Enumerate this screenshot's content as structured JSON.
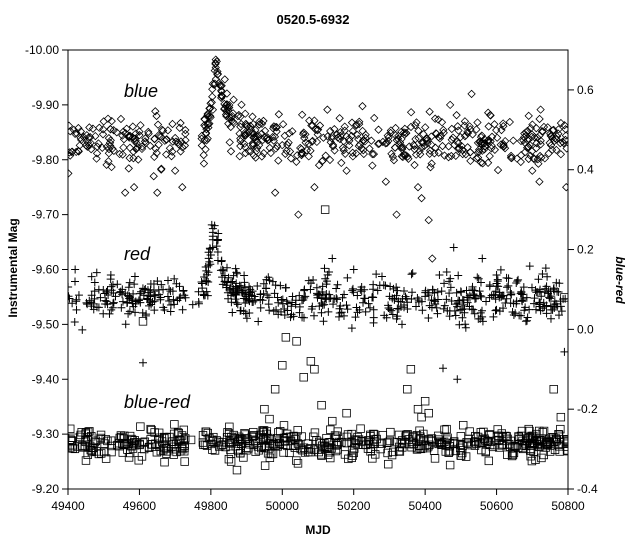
{
  "chart_data": {
    "type": "scatter",
    "title": "0520.5-6932",
    "xlabel": "MJD",
    "ylabel": "Instrumental Mag",
    "y2label": "blue-red",
    "xlim": [
      49400,
      50800
    ],
    "ylim": [
      -9.2,
      -10.0
    ],
    "y2lim": [
      -0.4,
      0.7
    ],
    "x_ticks": [
      "49400",
      "49600",
      "49800",
      "50000",
      "50200",
      "50400",
      "50600",
      "50800"
    ],
    "y_ticks": [
      "-9.20",
      "-9.30",
      "-9.40",
      "-9.50",
      "-9.60",
      "-9.70",
      "-9.80",
      "-9.90",
      "-10.00"
    ],
    "y2_ticks": [
      "-0.4",
      "-0.2",
      "0.0",
      "0.2",
      "0.4",
      "0.6"
    ],
    "grid": false,
    "annotations": [
      "blue",
      "red",
      "blue-red"
    ],
    "series": [
      {
        "name": "blue",
        "marker": "diamond",
        "y_axis": "left",
        "baseline": -9.835,
        "scatter": 0.022,
        "outburst": {
          "peak_x": 49815,
          "peak_y": -9.975,
          "rise_start": 49770,
          "decay_end": 49950
        },
        "points": [
          [
            49560,
            -9.74
          ],
          [
            49585,
            -9.75
          ],
          [
            49640,
            -9.77
          ],
          [
            49650,
            -9.74
          ],
          [
            49720,
            -9.75
          ],
          [
            49700,
            -9.78
          ],
          [
            49980,
            -9.74
          ],
          [
            50045,
            -9.7
          ],
          [
            50090,
            -9.75
          ],
          [
            50180,
            -9.78
          ],
          [
            50290,
            -9.76
          ],
          [
            50320,
            -9.7
          ],
          [
            50380,
            -9.75
          ],
          [
            50390,
            -9.73
          ],
          [
            50410,
            -9.69
          ],
          [
            50420,
            -9.62
          ],
          [
            50470,
            -9.9
          ],
          [
            50530,
            -9.92
          ],
          [
            50690,
            -9.88
          ],
          [
            50700,
            -9.78
          ],
          [
            50720,
            -9.76
          ],
          [
            50780,
            -9.81
          ],
          [
            50795,
            -9.75
          ]
        ]
      },
      {
        "name": "red",
        "marker": "plus",
        "y_axis": "left",
        "baseline": -9.547,
        "scatter": 0.02,
        "outburst": {
          "peak_x": 49810,
          "peak_y": -9.695,
          "rise_start": 49765,
          "decay_end": 49920
        },
        "points": [
          [
            49420,
            -9.6
          ],
          [
            49440,
            -9.49
          ],
          [
            49520,
            -9.59
          ],
          [
            49610,
            -9.43
          ],
          [
            49680,
            -9.58
          ],
          [
            49930,
            -9.57
          ],
          [
            50140,
            -9.62
          ],
          [
            50200,
            -9.6
          ],
          [
            50320,
            -9.51
          ],
          [
            50440,
            -9.59
          ],
          [
            50450,
            -9.42
          ],
          [
            50490,
            -9.4
          ],
          [
            50480,
            -9.64
          ],
          [
            50560,
            -9.62
          ],
          [
            50600,
            -9.59
          ],
          [
            50720,
            -9.54
          ],
          [
            50740,
            -9.52
          ],
          [
            50790,
            -9.45
          ]
        ]
      },
      {
        "name": "blue-red",
        "marker": "square",
        "y_axis": "right",
        "baseline": -0.285,
        "scatter": 0.018,
        "points": [
          [
            49610,
            0.02
          ],
          [
            49950,
            -0.2
          ],
          [
            49980,
            -0.15
          ],
          [
            50000,
            -0.09
          ],
          [
            50010,
            -0.02
          ],
          [
            50040,
            -0.03
          ],
          [
            50060,
            -0.12
          ],
          [
            50080,
            -0.08
          ],
          [
            50090,
            -0.1
          ],
          [
            50110,
            -0.19
          ],
          [
            50120,
            0.3
          ],
          [
            50140,
            -0.23
          ],
          [
            50180,
            -0.21
          ],
          [
            50350,
            -0.15
          ],
          [
            50360,
            -0.1
          ],
          [
            50380,
            -0.2
          ],
          [
            50390,
            -0.22
          ],
          [
            50400,
            -0.18
          ],
          [
            50410,
            -0.21
          ],
          [
            50460,
            -0.25
          ],
          [
            50470,
            -0.34
          ],
          [
            50530,
            -0.29
          ],
          [
            50690,
            -0.25
          ],
          [
            50760,
            -0.15
          ],
          [
            50780,
            -0.22
          ],
          [
            50790,
            0.08
          ]
        ]
      }
    ]
  }
}
